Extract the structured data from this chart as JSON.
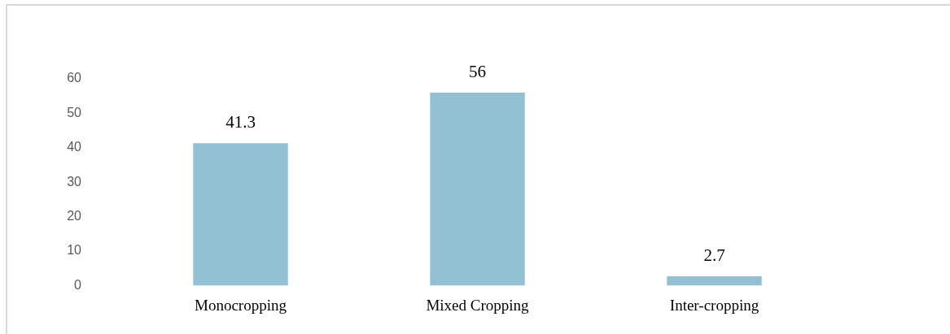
{
  "chart_data": {
    "type": "bar",
    "categories": [
      "Monocropping",
      "Mixed Cropping",
      "Inter-cropping"
    ],
    "values": [
      41.3,
      56,
      2.7
    ],
    "color": "#92c1d3",
    "ylim": [
      0,
      60
    ],
    "yticks": [
      0,
      10,
      20,
      30,
      40,
      50,
      60
    ],
    "data_labels": true,
    "grid": false
  }
}
